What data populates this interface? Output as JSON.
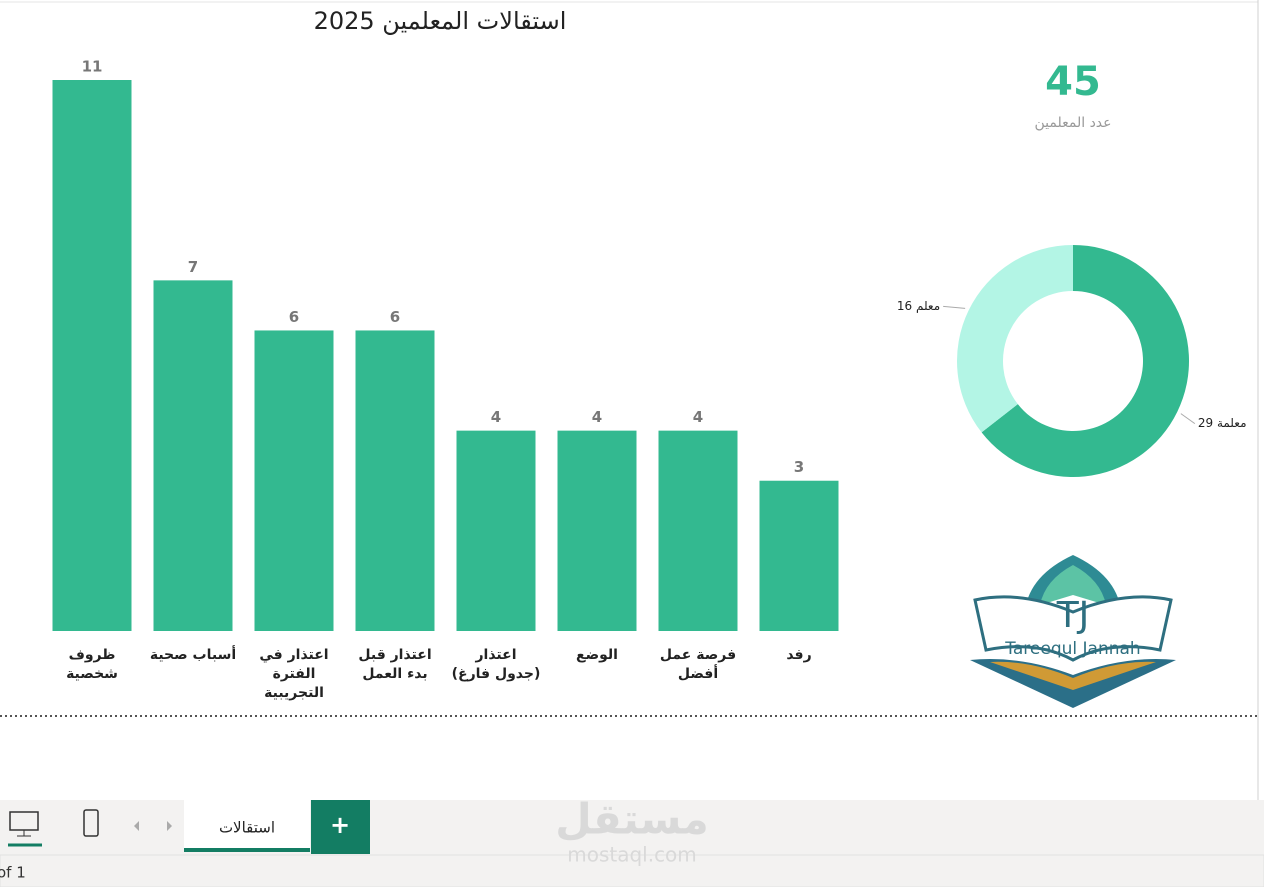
{
  "chart_data": [
    {
      "type": "bar",
      "title": "استقالات المعلمين 2025",
      "categories": [
        "ظروف شخصية",
        "أسباب صحية",
        "اعتذار في الفترة التجريبية",
        "اعتذار قبل بدء العمل",
        "اعتذار (جدول فارغ)",
        "الوضع",
        "فرصة عمل أفضل",
        "رفد"
      ],
      "values": [
        11,
        7,
        6,
        6,
        4,
        4,
        4,
        3
      ],
      "color": "#33b990"
    },
    {
      "type": "donut",
      "values": [
        29,
        16
      ],
      "value_labels": [
        "29 معلمة",
        "16 معلم"
      ],
      "colors": [
        "#33b990",
        "#b3f5e5"
      ]
    }
  ],
  "card": {
    "value": 45,
    "label": "عدد المعلمين"
  },
  "logo": {
    "initials": "TJ",
    "name": "Tareequl Jannah"
  },
  "tabs": {
    "pages": [
      "استقالات"
    ],
    "add": "+"
  },
  "watermark": {
    "name": "مستقل",
    "site": "mostaql.com"
  },
  "status": "of 1"
}
